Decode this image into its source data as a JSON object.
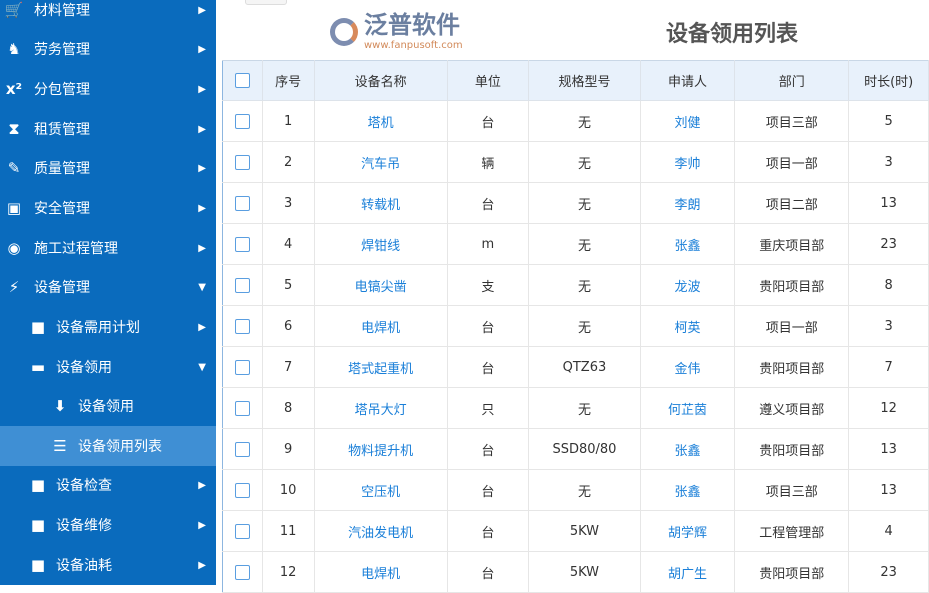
{
  "sidebar": {
    "items": [
      {
        "icon": "cart-icon",
        "glyph": "🛒",
        "label": "材料管理",
        "arrow": "▶"
      },
      {
        "icon": "fox-icon",
        "glyph": "♞",
        "label": "劳务管理",
        "arrow": "▶"
      },
      {
        "icon": "superscript-icon",
        "glyph": "x²",
        "label": "分包管理",
        "arrow": "▶"
      },
      {
        "icon": "hourglass-icon",
        "glyph": "⧗",
        "label": "租赁管理",
        "arrow": "▶"
      },
      {
        "icon": "edit-icon",
        "glyph": "✎",
        "label": "质量管理",
        "arrow": "▶"
      },
      {
        "icon": "safety-icon",
        "glyph": "▣",
        "label": "安全管理",
        "arrow": "▶"
      },
      {
        "icon": "process-icon",
        "glyph": "◉",
        "label": "施工过程管理",
        "arrow": "▶"
      },
      {
        "icon": "plug-icon",
        "glyph": "⚡",
        "label": "设备管理",
        "arrow": "▼"
      },
      {
        "icon": "folder-icon",
        "glyph": "■",
        "label": "设备需用计划",
        "arrow": "▶"
      },
      {
        "icon": "folder-open-icon",
        "glyph": "▬",
        "label": "设备领用",
        "arrow": "▼"
      },
      {
        "icon": "download-icon",
        "glyph": "⬇",
        "label": "设备领用",
        "arrow": ""
      },
      {
        "icon": "list-icon",
        "glyph": "☰",
        "label": "设备领用列表",
        "arrow": ""
      },
      {
        "icon": "folder-icon",
        "glyph": "■",
        "label": "设备检查",
        "arrow": "▶"
      },
      {
        "icon": "folder-icon",
        "glyph": "■",
        "label": "设备维修",
        "arrow": "▶"
      },
      {
        "icon": "folder-icon",
        "glyph": "■",
        "label": "设备油耗",
        "arrow": "▶"
      }
    ]
  },
  "main": {
    "title": "设备领用列表",
    "columns": [
      "序号",
      "设备名称",
      "单位",
      "规格型号",
      "申请人",
      "部门",
      "时长(时)"
    ],
    "rows": [
      [
        "1",
        "塔机",
        "台",
        "无",
        "刘健",
        "项目三部",
        "5"
      ],
      [
        "2",
        "汽车吊",
        "辆",
        "无",
        "李帅",
        "项目一部",
        "3"
      ],
      [
        "3",
        "转载机",
        "台",
        "无",
        "李朗",
        "项目二部",
        "13"
      ],
      [
        "4",
        "焊钳线",
        "m",
        "无",
        "张鑫",
        "重庆项目部",
        "23"
      ],
      [
        "5",
        "电镐尖凿",
        "支",
        "无",
        "龙波",
        "贵阳项目部",
        "8"
      ],
      [
        "6",
        "电焊机",
        "台",
        "无",
        "柯英",
        "项目一部",
        "3"
      ],
      [
        "7",
        "塔式起重机",
        "台",
        "QTZ63",
        "金伟",
        "贵阳项目部",
        "7"
      ],
      [
        "8",
        "塔吊大灯",
        "只",
        "无",
        "何芷茵",
        "遵义项目部",
        "12"
      ],
      [
        "9",
        "物料提升机",
        "台",
        "SSD80/80",
        "张鑫",
        "贵阳项目部",
        "13"
      ],
      [
        "10",
        "空压机",
        "台",
        "无",
        "张鑫",
        "项目三部",
        "13"
      ],
      [
        "11",
        "汽油发电机",
        "台",
        "5KW",
        "胡学辉",
        "工程管理部",
        "4"
      ],
      [
        "12",
        "电焊机",
        "台",
        "5KW",
        "胡广生",
        "贵阳项目部",
        "23"
      ]
    ]
  },
  "watermark": {
    "brand": "泛普软件",
    "url": "www.fanpusoft.com"
  }
}
